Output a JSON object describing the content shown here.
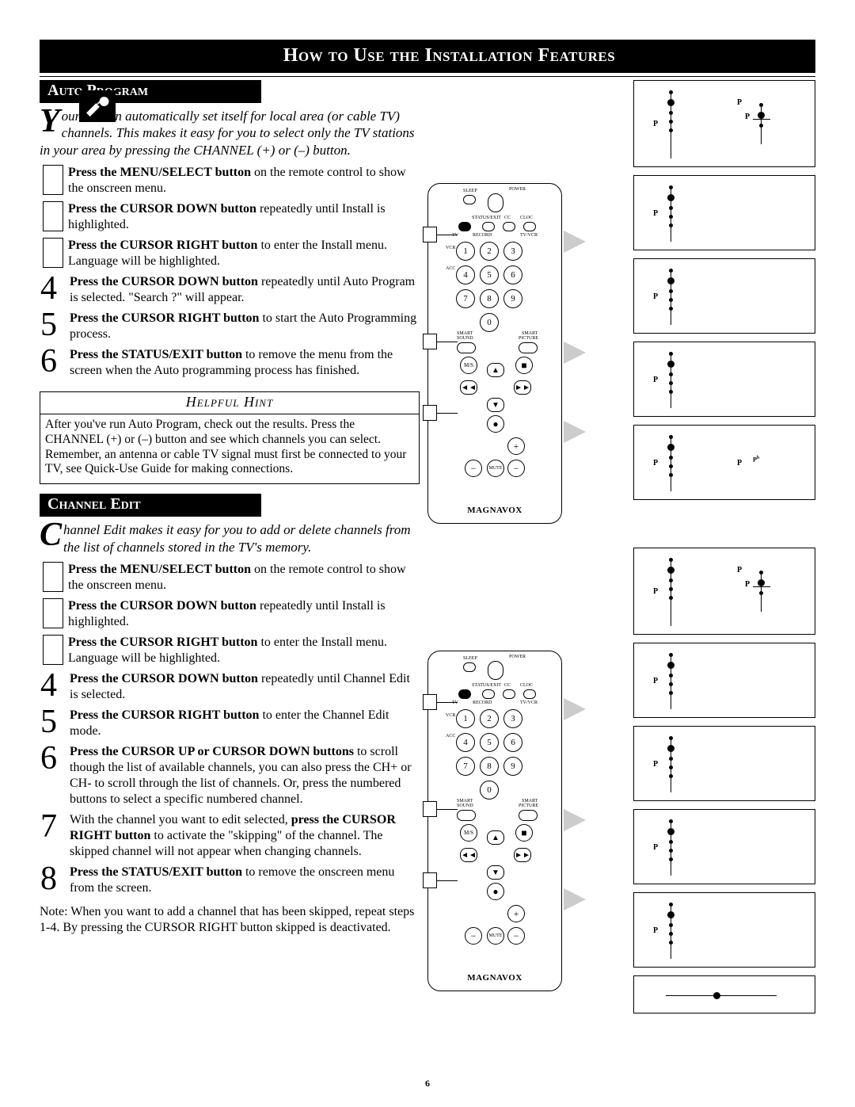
{
  "page": {
    "title": "How to Use the Installation Features",
    "page_number": "6"
  },
  "auto_program": {
    "heading": "Auto Program",
    "intro_dropcap": "Y",
    "intro_rest": "our TV can automatically set itself for local area (or cable TV) channels.  This makes it easy for you to select only the TV stations in your area by pressing the CHANNEL (+) or (–) button.",
    "steps": [
      {
        "num": "",
        "bold": "Press the MENU/SELECT button",
        "rest": " on the remote control to show the onscreen menu."
      },
      {
        "num": "",
        "bold": "Press the CURSOR DOWN button",
        "rest": " repeatedly until Install is highlighted."
      },
      {
        "num": "",
        "bold": "Press the CURSOR RIGHT button",
        "rest": " to enter the Install menu. Language will be highlighted."
      },
      {
        "num": "4",
        "bold": "Press the CURSOR DOWN button",
        "rest": " repeatedly until Auto Program is selected. \"Search ?\" will appear."
      },
      {
        "num": "5",
        "bold": "Press the CURSOR RIGHT button",
        "rest": " to start the Auto Programming process."
      },
      {
        "num": "6",
        "bold": "Press the STATUS/EXIT button",
        "rest": " to remove the menu from the screen when the Auto programming process has finished."
      }
    ],
    "hint_title": "Helpful Hint",
    "hint_body": "After you've run Auto Program, check out the results.  Press the CHANNEL (+) or (–) button and see which channels you can select.\nRemember, an antenna or cable TV signal must first be connected to your TV, see Quick-Use Guide for making connections."
  },
  "channel_edit": {
    "heading": "Channel Edit",
    "intro_dropcap": "C",
    "intro_rest": "hannel Edit makes it easy for you to add or delete channels from the list of channels stored in the TV's memory.",
    "steps": [
      {
        "num": "",
        "bold": "Press the MENU/SELECT button",
        "rest": " on the remote control to show the onscreen menu."
      },
      {
        "num": "",
        "bold": "Press the CURSOR DOWN button",
        "rest": " repeatedly until Install is highlighted."
      },
      {
        "num": "",
        "bold": "Press the CURSOR RIGHT button",
        "rest": " to enter the Install menu. Language will be highlighted."
      },
      {
        "num": "4",
        "bold": "Press the CURSOR DOWN button",
        "rest": " repeatedly until Channel Edit is selected."
      },
      {
        "num": "5",
        "bold": "Press the CURSOR RIGHT button",
        "rest": " to enter the Channel Edit mode."
      },
      {
        "num": "6",
        "bold": "Press the CURSOR UP or CURSOR DOWN buttons",
        "rest": " to scroll though the list of available channels, you can also press the CH+ or CH- to scroll through the list of channels. Or, press the numbered buttons to select a specific numbered channel."
      },
      {
        "num": "7",
        "prefix": "With the channel you want to edit selected, ",
        "bold": "press the CURSOR RIGHT button",
        "rest": " to activate the \"skipping\" of the channel. The skipped channel will not appear when changing channels."
      },
      {
        "num": "8",
        "bold": "Press the STATUS/EXIT button",
        "rest": " to remove the onscreen menu from the screen."
      }
    ],
    "note": "Note:  When you want to add a channel that has been skipped, repeat steps 1-4. By pressing the CURSOR RIGHT button skipped is deactivated."
  },
  "remote": {
    "brand": "MAGNAVOX",
    "labels": {
      "sleep": "SLEEP",
      "power": "POWER",
      "status": "STATUS/EXIT",
      "cc": "CC",
      "cloc": "CLOC",
      "tv": "TV",
      "record": "RECORD",
      "tvvcr": "TV/VCR",
      "vcr": "VCR",
      "acc": "ACC",
      "smart_sound": "SMART SOUND",
      "smart_picture": "SMART PICTURE",
      "menu": "M/S",
      "mute": "MUTE"
    },
    "keys": [
      "1",
      "2",
      "3",
      "4",
      "5",
      "6",
      "7",
      "8",
      "9",
      "0"
    ]
  },
  "tv_diagrams": {
    "p_label": "P"
  }
}
